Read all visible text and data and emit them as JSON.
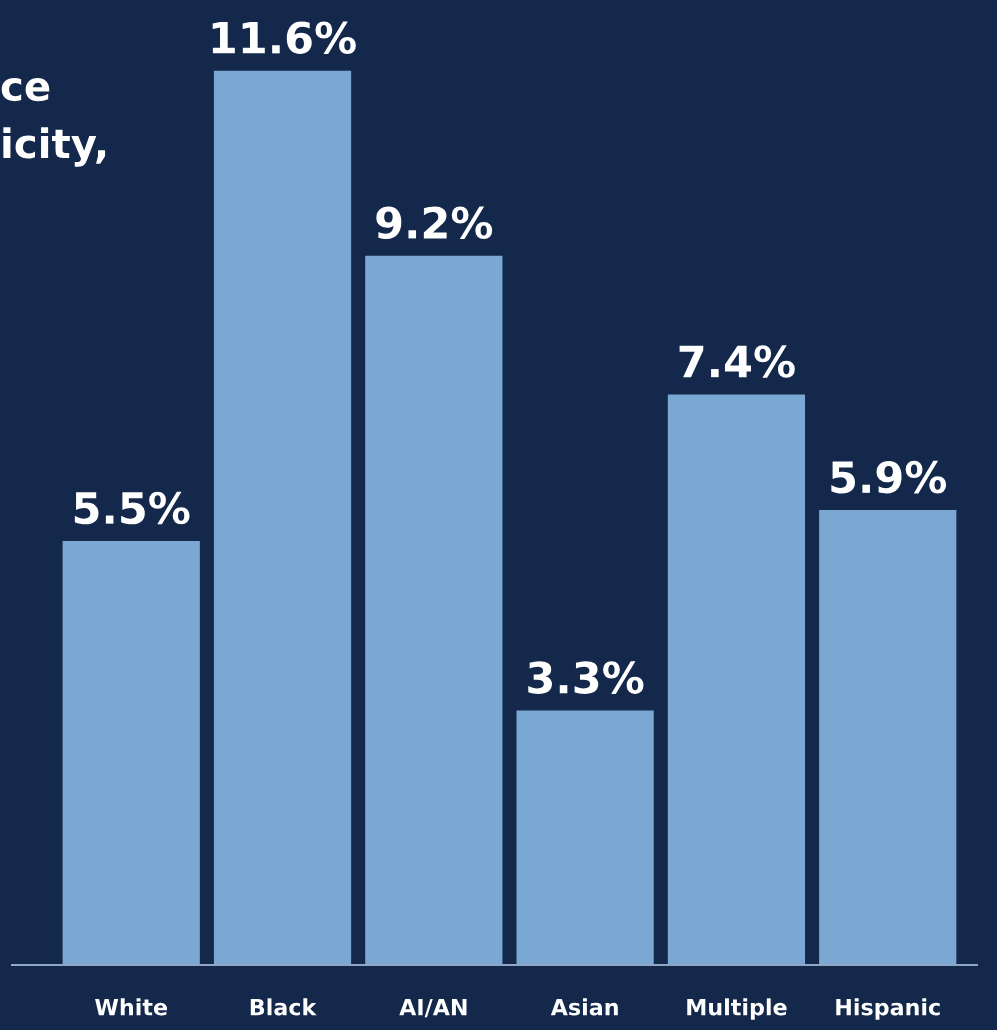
{
  "chart_data": {
    "type": "bar",
    "title": "ce\nicity,",
    "categories": [
      "White",
      "Black",
      "AI/AN",
      "Asian",
      "Multiple",
      "Hispanic"
    ],
    "values": [
      5.5,
      11.6,
      9.2,
      3.3,
      7.4,
      5.9
    ],
    "value_labels": [
      "5.5%",
      "11.6%",
      "9.2%",
      "3.3%",
      "7.4%",
      "5.9%"
    ],
    "color": "#7ba7d3",
    "grid": false,
    "legend": false
  }
}
